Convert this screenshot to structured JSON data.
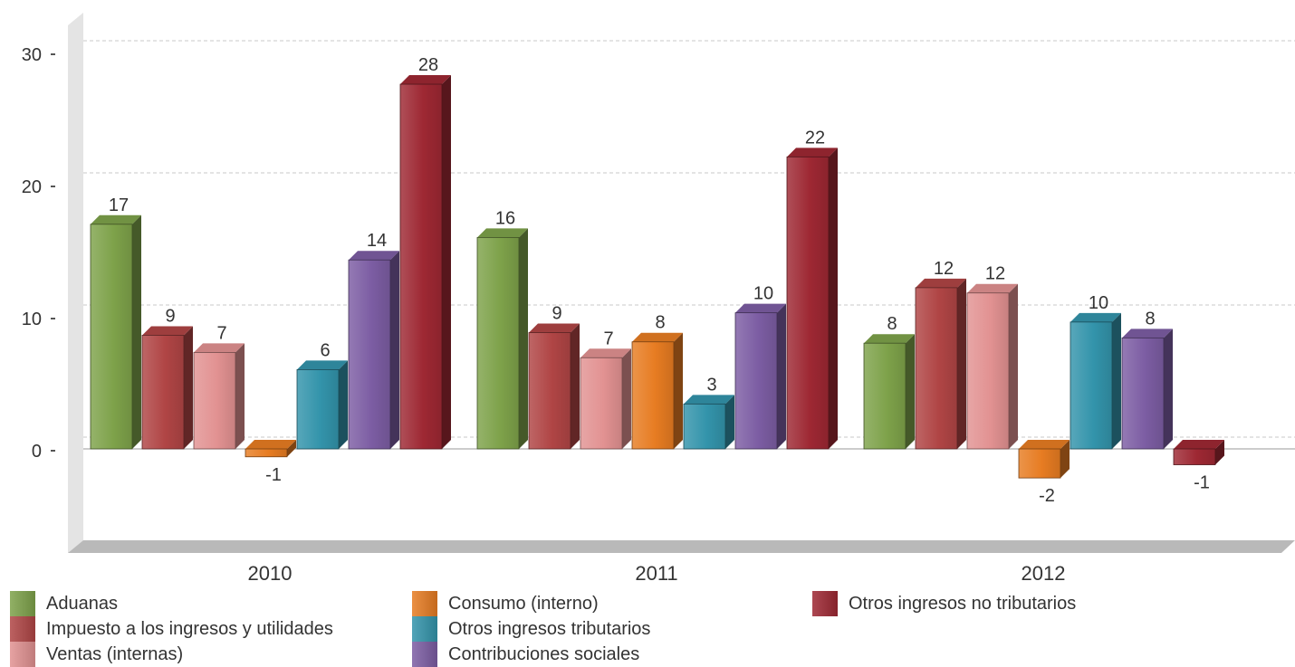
{
  "chart_data": {
    "type": "bar",
    "categories": [
      "2010",
      "2011",
      "2012"
    ],
    "series": [
      {
        "name": "Aduanas",
        "values": [
          17,
          16,
          8
        ],
        "labels": [
          "17",
          "16",
          "8"
        ],
        "color": "#7ea24a"
      },
      {
        "name": "Impuesto a los ingresos y utilidades",
        "values": [
          8.6,
          8.8,
          12.2
        ],
        "labels": [
          "9",
          "9",
          "12"
        ],
        "color": "#b04545"
      },
      {
        "name": "Ventas (internas)",
        "values": [
          7.3,
          6.9,
          11.8
        ],
        "labels": [
          "7",
          "7",
          "12"
        ],
        "color": "#e29292"
      },
      {
        "name": "Consumo (interno)",
        "values": [
          -0.6,
          8.1,
          -2.2
        ],
        "labels": [
          "-1",
          "8",
          "-2"
        ],
        "color": "#e77c22"
      },
      {
        "name": "Otros ingresos tributarios",
        "values": [
          6.0,
          3.4,
          9.6
        ],
        "labels": [
          "6",
          "3",
          "10"
        ],
        "color": "#3394ab"
      },
      {
        "name": "Contribuciones sociales",
        "values": [
          14.3,
          10.3,
          8.4
        ],
        "labels": [
          "14",
          "10",
          "8"
        ],
        "color": "#7c5da3"
      },
      {
        "name": "Otros ingresos no tributarios",
        "values": [
          27.6,
          22.1,
          -1.2
        ],
        "labels": [
          "28",
          "22",
          "-1"
        ],
        "color": "#9e2833"
      }
    ],
    "yticks": [
      0,
      10,
      20,
      30
    ],
    "ylim": [
      -6.5,
      31
    ],
    "grid": true,
    "legend_position": "bottom",
    "title": "",
    "xlabel": "",
    "ylabel": ""
  }
}
